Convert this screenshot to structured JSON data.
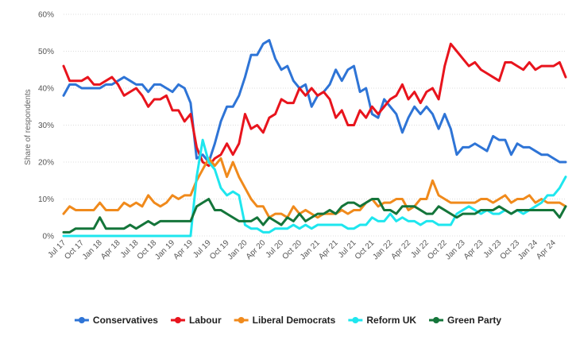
{
  "chart_data": {
    "type": "line",
    "title": "",
    "xlabel": "",
    "ylabel": "Share of respondents",
    "ylim": [
      0,
      60
    ],
    "yticks": [
      "0%",
      "10%",
      "20%",
      "30%",
      "40%",
      "50%",
      "60%"
    ],
    "grid": true,
    "legend": "bottom",
    "x_start": "Jul 17",
    "x_end": "May 24",
    "x_tick_labels": [
      "Jul 17",
      "Oct 17",
      "Jan 18",
      "Apr 18",
      "Jul 18",
      "Oct 18",
      "Jan 19",
      "Apr 19",
      "Jul 19",
      "Oct 19",
      "Jan 20",
      "Apr 20",
      "Jul 20",
      "Oct 20",
      "Jan 21",
      "Apr 21",
      "Jul 21",
      "Oct 21",
      "Jan 22",
      "Apr 22",
      "Jul 22",
      "Oct 22",
      "Jan 23",
      "Apr 23",
      "Jul 23",
      "Oct 23",
      "Jan 24",
      "Apr 24"
    ],
    "series": [
      {
        "name": "Conservatives",
        "color": "#2e74d6",
        "values": [
          38,
          41,
          41,
          40,
          40,
          40,
          40,
          41,
          41,
          42,
          43,
          42,
          41,
          41,
          39,
          41,
          41,
          40,
          39,
          41,
          40,
          36,
          21,
          22,
          20,
          25,
          31,
          35,
          35,
          38,
          43,
          49,
          49,
          52,
          53,
          48,
          45,
          46,
          42,
          40,
          41,
          35,
          38,
          39,
          41,
          45,
          42,
          45,
          46,
          39,
          40,
          33,
          32,
          37,
          35,
          33,
          28,
          32,
          35,
          33,
          35,
          33,
          29,
          33,
          29,
          22,
          24,
          24,
          25,
          24,
          23,
          27,
          26,
          26,
          22,
          25,
          24,
          24,
          23,
          22,
          22,
          21,
          20,
          20
        ]
      },
      {
        "name": "Labour",
        "color": "#e8141d",
        "values": [
          46,
          42,
          42,
          42,
          43,
          41,
          41,
          42,
          43,
          41,
          38,
          39,
          40,
          38,
          35,
          37,
          37,
          38,
          34,
          34,
          31,
          33,
          24,
          20,
          19,
          21,
          22,
          25,
          22,
          25,
          33,
          29,
          30,
          28,
          32,
          33,
          37,
          36,
          36,
          40,
          38,
          40,
          38,
          39,
          37,
          32,
          34,
          30,
          30,
          34,
          32,
          35,
          33,
          35,
          37,
          38,
          41,
          37,
          39,
          36,
          39,
          40,
          37,
          46,
          52,
          50,
          48,
          46,
          47,
          45,
          44,
          43,
          42,
          47,
          47,
          46,
          45,
          47,
          45,
          46,
          46,
          46,
          47,
          43
        ]
      },
      {
        "name": "Liberal Democrats",
        "color": "#f08a1c",
        "values": [
          6,
          8,
          7,
          7,
          7,
          7,
          9,
          7,
          7,
          7,
          9,
          8,
          9,
          8,
          11,
          9,
          8,
          9,
          11,
          10,
          11,
          11,
          15,
          18,
          21,
          19,
          21,
          16,
          20,
          16,
          13,
          10,
          8,
          8,
          5,
          6,
          6,
          5,
          8,
          6,
          7,
          6,
          5,
          6,
          6,
          6,
          7,
          6,
          7,
          7,
          9,
          10,
          8,
          9,
          9,
          10,
          10,
          7,
          8,
          10,
          10,
          15,
          11,
          10,
          9,
          9,
          9,
          9,
          9,
          10,
          10,
          9,
          10,
          11,
          9,
          10,
          10,
          11,
          9,
          10,
          9,
          9,
          9,
          8
        ]
      },
      {
        "name": "Reform UK",
        "color": "#1ee6ee",
        "values": [
          0,
          0,
          0,
          0,
          0,
          0,
          0,
          0,
          0,
          0,
          0,
          0,
          0,
          0,
          0,
          0,
          0,
          0,
          0,
          0,
          0,
          0,
          16,
          26,
          20,
          18,
          13,
          11,
          12,
          11,
          3,
          2,
          2,
          1,
          1,
          2,
          2,
          2,
          3,
          2,
          3,
          2,
          3,
          3,
          3,
          3,
          3,
          2,
          2,
          3,
          3,
          5,
          4,
          4,
          6,
          4,
          5,
          4,
          4,
          3,
          4,
          4,
          3,
          3,
          3,
          6,
          7,
          8,
          7,
          6,
          7,
          6,
          6,
          7,
          6,
          7,
          6,
          7,
          8,
          9,
          11,
          11,
          13,
          16
        ]
      },
      {
        "name": "Green Party",
        "color": "#14753a",
        "values": [
          1,
          1,
          2,
          2,
          2,
          2,
          5,
          2,
          2,
          2,
          2,
          3,
          2,
          3,
          4,
          3,
          4,
          4,
          4,
          4,
          4,
          4,
          8,
          9,
          10,
          7,
          7,
          6,
          5,
          4,
          4,
          4,
          5,
          3,
          5,
          4,
          3,
          5,
          4,
          6,
          4,
          5,
          6,
          6,
          7,
          6,
          8,
          9,
          9,
          8,
          9,
          10,
          10,
          7,
          7,
          6,
          8,
          8,
          8,
          7,
          6,
          6,
          8,
          7,
          6,
          5,
          6,
          6,
          6,
          7,
          7,
          7,
          8,
          7,
          6,
          7,
          7,
          7,
          7,
          7,
          7,
          7,
          5,
          8
        ]
      }
    ]
  }
}
